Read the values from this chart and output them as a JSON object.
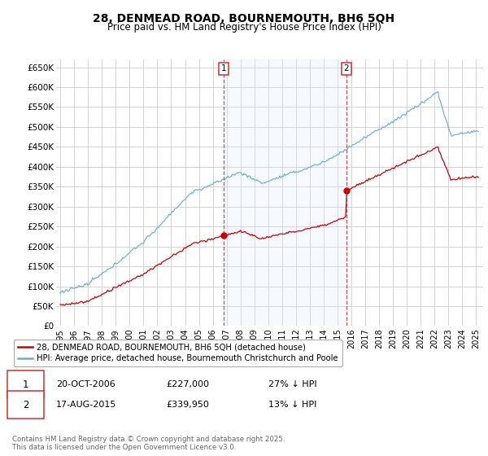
{
  "title": "28, DENMEAD ROAD, BOURNEMOUTH, BH6 5QH",
  "subtitle": "Price paid vs. HM Land Registry's House Price Index (HPI)",
  "yticks": [
    0,
    50000,
    100000,
    150000,
    200000,
    250000,
    300000,
    350000,
    400000,
    450000,
    500000,
    550000,
    600000,
    650000
  ],
  "ytick_labels": [
    "£0",
    "£50K",
    "£100K",
    "£150K",
    "£200K",
    "£250K",
    "£300K",
    "£350K",
    "£400K",
    "£450K",
    "£500K",
    "£550K",
    "£600K",
    "£650K"
  ],
  "ylim": [
    0,
    670000
  ],
  "xlim_start": 1994.7,
  "xlim_end": 2025.5,
  "hpi_color": "#6aaed6",
  "price_color": "#cc0000",
  "shade_color": "#ddeeff",
  "sale1_x": 2006.79,
  "sale1_y": 227000,
  "sale2_x": 2015.62,
  "sale2_y": 339950,
  "legend_line1": "28, DENMEAD ROAD, BOURNEMOUTH, BH6 5QH (detached house)",
  "legend_line2": "HPI: Average price, detached house, Bournemouth Christchurch and Poole",
  "footer": "Contains HM Land Registry data © Crown copyright and database right 2025.\nThis data is licensed under the Open Government Licence v3.0.",
  "background_color": "#ffffff",
  "plot_bg_color": "#ffffff",
  "grid_color": "#cccccc"
}
